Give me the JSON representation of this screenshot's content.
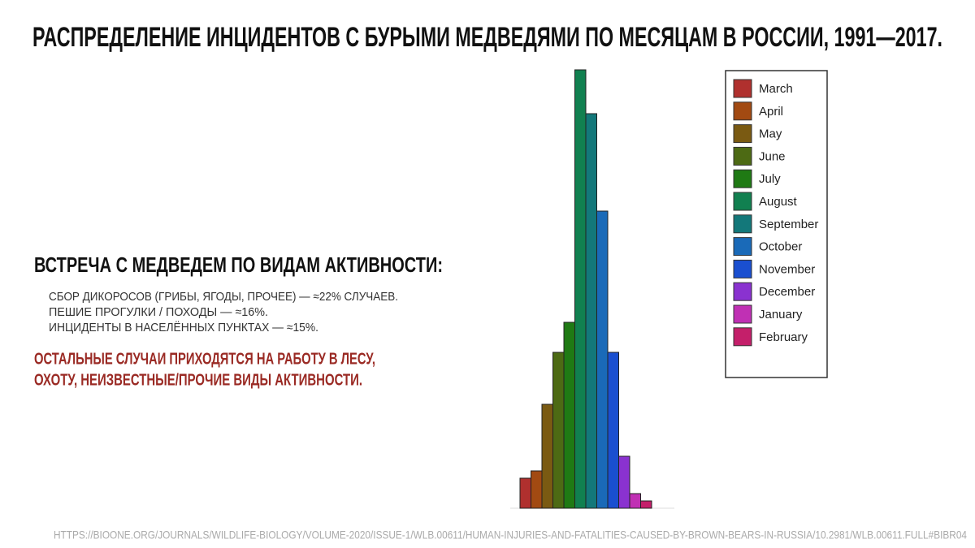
{
  "header": {
    "title": "РАСПРЕДЕЛЕНИЕ ИНЦИДЕНТОВ С БУРЫМИ МЕДВЕДЯМИ ПО МЕСЯЦАМ В РОССИИ, 1991—2017."
  },
  "activity": {
    "heading": "ВСТРЕЧА С МЕДВЕДЕМ ПО ВИДАМ АКТИВНОСТИ:",
    "items": [
      "СБОР ДИКОРОСОВ (ГРИБЫ, ЯГОДЫ, ПРОЧЕЕ) — ≈22% СЛУЧАЕВ.",
      "ПЕШИЕ ПРОГУЛКИ / ПОХОДЫ — ≈16%.",
      "ИНЦИДЕНТЫ В НАСЕЛЁННЫХ ПУНКТАХ — ≈15%."
    ],
    "note": [
      "ОСТАЛЬНЫЕ СЛУЧАИ ПРИХОДЯТСЯ НА РАБОТУ В ЛЕСУ,",
      "ОХОТУ, НЕИЗВЕСТНЫЕ/ПРОЧИЕ ВИДЫ АКТИВНОСТИ."
    ]
  },
  "source": "HTTPS://BIOONE.ORG/JOURNALS/WILDLIFE-BIOLOGY/VOLUME-2020/ISSUE-1/WLB.00611/HUMAN-INJURIES-AND-FATALITIES-CAUSED-BY-BROWN-BEARS-IN-RUSSIA/10.2981/WLB.00611.FULL#BIBR04",
  "chart_data": {
    "type": "bar",
    "categories": [
      "March",
      "April",
      "May",
      "June",
      "July",
      "August",
      "September",
      "October",
      "November",
      "December",
      "January",
      "February"
    ],
    "values": [
      37,
      46,
      128,
      192,
      229,
      540,
      486,
      366,
      192,
      64,
      18,
      9
    ],
    "colors": [
      "#b0302e",
      "#a24a12",
      "#7a5a12",
      "#4d6a14",
      "#1f7a14",
      "#118050",
      "#13787a",
      "#1a6ab8",
      "#1a4fd0",
      "#8a32d0",
      "#c030b4",
      "#c41f6a"
    ],
    "legend": "top-right"
  }
}
